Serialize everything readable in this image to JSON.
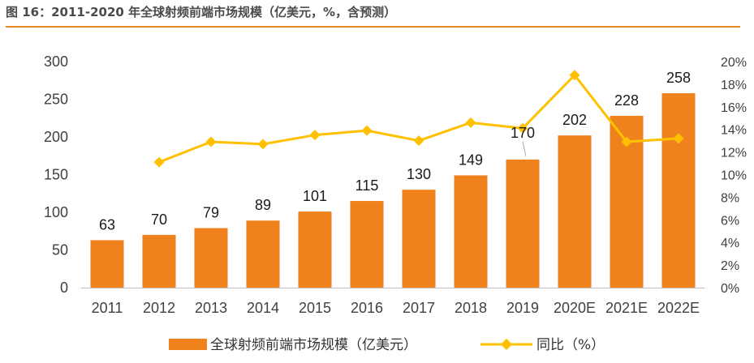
{
  "page_title": "图 16：2011-2020 年全球射频前端市场规模（亿美元，%，含预测）",
  "chart_data": {
    "type": "bar",
    "title": "图 16：2011-2020 年全球射频前端市场规模（亿美元，%，含预测）",
    "categories": [
      "2011",
      "2012",
      "2013",
      "2014",
      "2015",
      "2016",
      "2017",
      "2018",
      "2019",
      "2020E",
      "2021E",
      "2022E"
    ],
    "series": [
      {
        "name": "全球射频前端市场规模（亿美元）",
        "type": "bar",
        "axis": "left",
        "color": "#f0821e",
        "values": [
          63,
          70,
          79,
          89,
          101,
          115,
          130,
          149,
          170,
          202,
          228,
          258
        ]
      },
      {
        "name": "同比（%）",
        "type": "line",
        "axis": "right",
        "color": "#ffc000",
        "values": [
          null,
          11.1,
          12.9,
          12.7,
          13.5,
          13.9,
          13.0,
          14.6,
          14.1,
          18.8,
          12.9,
          13.2
        ]
      }
    ],
    "ylim": [
      0,
      300
    ],
    "yticks": [
      "0",
      "50",
      "100",
      "150",
      "200",
      "250",
      "300"
    ],
    "y2lim": [
      0,
      20
    ],
    "y2ticks": [
      "0%",
      "2%",
      "4%",
      "6%",
      "8%",
      "10%",
      "12%",
      "14%",
      "16%",
      "18%",
      "20%"
    ],
    "grid": false,
    "legend": "bottom"
  }
}
